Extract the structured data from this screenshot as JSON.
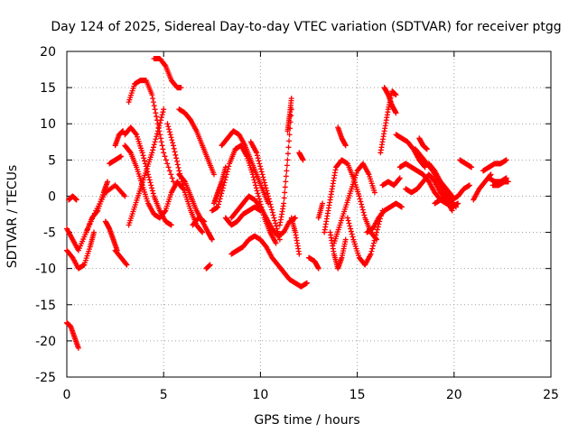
{
  "chart_data": {
    "type": "scatter",
    "title": "Day 124 of 2025, Sidereal Day-to-day VTEC variation (SDTVAR) for receiver ptgg",
    "xlabel": "GPS time / hours",
    "ylabel": "SDTVAR / TECUs",
    "xlim": [
      0,
      25
    ],
    "ylim": [
      -25,
      20
    ],
    "x_ticks": [
      0,
      5,
      10,
      15,
      20,
      25
    ],
    "y_ticks": [
      -25,
      -20,
      -15,
      -10,
      -5,
      0,
      5,
      10,
      15,
      20
    ],
    "x_tick_labels": [
      "0",
      "5",
      "10",
      "15",
      "20",
      "25"
    ],
    "y_tick_labels": [
      "-25",
      "-20",
      "-15",
      "-10",
      "-5",
      "0",
      "5",
      "10",
      "15",
      "20"
    ],
    "grid": true,
    "marker": "+",
    "color": "#ff0000",
    "series": [
      {
        "name": "track-a",
        "x": [
          0.0,
          0.2,
          0.4,
          0.6
        ],
        "y": [
          -17.5,
          -18.0,
          -19.5,
          -21.0
        ]
      },
      {
        "name": "track-b",
        "x": [
          0.0,
          0.3,
          0.6,
          1.0,
          1.5,
          2.0,
          2.5,
          3.0
        ],
        "y": [
          -4.5,
          -6.0,
          -7.5,
          -5.0,
          -2.0,
          0.5,
          1.5,
          0.0
        ]
      },
      {
        "name": "track-c",
        "x": [
          0.0,
          0.3,
          0.6,
          0.9,
          1.2,
          1.4
        ],
        "y": [
          -7.5,
          -8.5,
          -10.0,
          -9.5,
          -7.0,
          -5.0
        ]
      },
      {
        "name": "track-d",
        "x": [
          0.1,
          0.3,
          0.5
        ],
        "y": [
          -0.5,
          0.0,
          -0.5
        ]
      },
      {
        "name": "track-e",
        "x": [
          1.0,
          1.3,
          1.6,
          1.9,
          2.1
        ],
        "y": [
          -5.0,
          -3.0,
          -2.0,
          0.5,
          2.0
        ]
      },
      {
        "name": "track-f",
        "x": [
          2.0,
          2.2,
          2.4,
          2.6
        ],
        "y": [
          -3.5,
          -4.5,
          -6.0,
          -7.5
        ]
      },
      {
        "name": "track-g",
        "x": [
          2.5,
          2.8,
          3.1
        ],
        "y": [
          -7.5,
          -8.5,
          -9.5
        ]
      },
      {
        "name": "track-h",
        "x": [
          2.2,
          2.5,
          2.8
        ],
        "y": [
          4.5,
          5.0,
          5.5
        ]
      },
      {
        "name": "track-i",
        "x": [
          2.5,
          2.7,
          2.9
        ],
        "y": [
          7.0,
          8.5,
          9.0
        ]
      },
      {
        "name": "track-j",
        "x": [
          3.2,
          3.5,
          3.8,
          4.1,
          4.4,
          4.7,
          5.0,
          5.5
        ],
        "y": [
          13.0,
          15.5,
          16.0,
          16.0,
          14.0,
          10.0,
          6.0,
          2.0
        ]
      },
      {
        "name": "track-k",
        "x": [
          3.0,
          3.3,
          3.6,
          3.9,
          4.2,
          4.5,
          4.8,
          5.1,
          5.4
        ],
        "y": [
          8.5,
          9.5,
          8.5,
          6.0,
          3.0,
          0.0,
          -2.0,
          -3.5,
          -4.0
        ]
      },
      {
        "name": "track-l",
        "x": [
          3.0,
          3.3,
          3.6,
          3.9,
          4.2,
          4.5,
          4.8,
          5.1,
          5.4,
          5.7,
          6.0
        ],
        "y": [
          7.0,
          6.0,
          4.0,
          1.5,
          -1.0,
          -2.5,
          -3.0,
          -2.0,
          0.5,
          2.0,
          1.0
        ]
      },
      {
        "name": "track-m",
        "x": [
          3.2,
          3.5,
          3.8,
          4.1,
          4.4,
          4.7,
          5.0
        ],
        "y": [
          -4.0,
          -1.5,
          1.0,
          3.5,
          6.0,
          9.0,
          12.0
        ]
      },
      {
        "name": "track-n",
        "x": [
          4.5,
          4.8,
          5.1,
          5.4,
          5.7,
          5.9
        ],
        "y": [
          19.0,
          19.0,
          18.0,
          16.0,
          15.0,
          15.0
        ]
      },
      {
        "name": "track-o",
        "x": [
          5.2,
          5.5,
          5.8,
          6.1,
          6.4,
          6.7,
          7.0
        ],
        "y": [
          10.0,
          7.0,
          3.5,
          0.5,
          -2.0,
          -4.0,
          -5.0
        ]
      },
      {
        "name": "track-p",
        "x": [
          5.8,
          6.1,
          6.4,
          6.7,
          7.0,
          7.3,
          7.5
        ],
        "y": [
          3.0,
          2.0,
          0.0,
          -2.0,
          -3.5,
          -5.0,
          -6.0
        ]
      },
      {
        "name": "track-q",
        "x": [
          5.8,
          6.1,
          6.4,
          6.7,
          7.0,
          7.3,
          7.6
        ],
        "y": [
          12.0,
          11.5,
          10.5,
          9.0,
          7.0,
          5.0,
          3.0
        ]
      },
      {
        "name": "track-r",
        "x": [
          6.5,
          6.8,
          7.1
        ],
        "y": [
          -4.0,
          -3.0,
          -3.5
        ]
      },
      {
        "name": "track-s",
        "x": [
          7.2,
          7.4
        ],
        "y": [
          -10.0,
          -9.5
        ]
      },
      {
        "name": "track-t",
        "x": [
          7.6,
          7.8,
          8.0,
          8.2
        ],
        "y": [
          -1.0,
          0.5,
          2.0,
          4.0
        ]
      },
      {
        "name": "track-u",
        "x": [
          7.5,
          7.8,
          8.1,
          8.4,
          8.7,
          9.0,
          9.3,
          9.6,
          9.9,
          10.2,
          10.5,
          10.8
        ],
        "y": [
          -2.0,
          -1.5,
          1.5,
          4.5,
          6.5,
          7.0,
          5.5,
          3.0,
          0.0,
          -3.0,
          -5.0,
          -6.5
        ]
      },
      {
        "name": "track-v",
        "x": [
          8.0,
          8.3,
          8.6,
          8.9,
          9.2,
          9.5,
          9.8,
          10.1,
          10.4
        ],
        "y": [
          7.0,
          8.0,
          9.0,
          8.5,
          7.0,
          5.0,
          3.0,
          1.0,
          -1.0
        ]
      },
      {
        "name": "track-w",
        "x": [
          8.2,
          8.5,
          8.8,
          9.1,
          9.4,
          9.7,
          10.0
        ],
        "y": [
          -3.0,
          -4.0,
          -3.5,
          -2.5,
          -2.0,
          -1.5,
          -2.0
        ]
      },
      {
        "name": "track-x",
        "x": [
          8.5,
          8.8,
          9.1,
          9.4,
          9.7,
          10.0,
          10.3,
          10.6,
          10.9,
          11.2,
          11.5,
          11.8
        ],
        "y": [
          -3.0,
          -2.0,
          -1.0,
          0.0,
          -0.5,
          -1.5,
          -3.0,
          -4.5,
          -5.5,
          -5.0,
          -3.5,
          -3.0
        ]
      },
      {
        "name": "track-y",
        "x": [
          8.5,
          8.8,
          9.1,
          9.4,
          9.7,
          10.0,
          10.3,
          10.6,
          10.9,
          11.2,
          11.5,
          11.8,
          12.1,
          12.4
        ],
        "y": [
          -8.0,
          -7.5,
          -7.0,
          -6.0,
          -5.5,
          -6.0,
          -7.0,
          -8.5,
          -9.5,
          -10.5,
          -11.5,
          -12.0,
          -12.5,
          -12.0
        ]
      },
      {
        "name": "track-z",
        "x": [
          9.5,
          9.8,
          10.1,
          10.4,
          10.7,
          11.0
        ],
        "y": [
          7.5,
          6.0,
          3.0,
          0.0,
          -3.0,
          -6.0
        ]
      },
      {
        "name": "track-aa",
        "x": [
          11.0,
          11.2,
          11.4,
          11.6
        ],
        "y": [
          -4.0,
          -1.0,
          5.0,
          12.0
        ]
      },
      {
        "name": "track-ab",
        "x": [
          11.4,
          11.5,
          11.6
        ],
        "y": [
          9.0,
          11.0,
          13.5
        ]
      },
      {
        "name": "track-ac",
        "x": [
          11.6,
          11.8,
          12.0
        ],
        "y": [
          -3.0,
          -5.0,
          -8.0
        ]
      },
      {
        "name": "track-ad",
        "x": [
          12.0,
          12.2
        ],
        "y": [
          6.0,
          5.0
        ]
      },
      {
        "name": "track-ae",
        "x": [
          12.5,
          12.8,
          13.0
        ],
        "y": [
          -8.5,
          -9.0,
          -10.0
        ]
      },
      {
        "name": "track-af",
        "x": [
          13.0,
          13.2
        ],
        "y": [
          -3.0,
          -1.0
        ]
      },
      {
        "name": "track-ag",
        "x": [
          13.3,
          13.5,
          13.7,
          13.9,
          14.2,
          14.5,
          14.8,
          15.1,
          15.4,
          15.7,
          16.0
        ],
        "y": [
          -5.0,
          -2.0,
          1.0,
          4.0,
          5.0,
          4.5,
          2.5,
          0.0,
          -3.0,
          -5.0,
          -6.0
        ]
      },
      {
        "name": "track-ah",
        "x": [
          13.6,
          13.8,
          14.0,
          14.2,
          14.4
        ],
        "y": [
          -5.0,
          -8.0,
          -10.0,
          -8.5,
          -6.0
        ]
      },
      {
        "name": "track-ai",
        "x": [
          13.8,
          14.1,
          14.4,
          14.7,
          15.0,
          15.3,
          15.6,
          15.9
        ],
        "y": [
          -6.5,
          -4.0,
          -1.5,
          1.0,
          3.5,
          4.5,
          3.0,
          0.5
        ]
      },
      {
        "name": "track-aj",
        "x": [
          14.0,
          14.2,
          14.4
        ],
        "y": [
          9.5,
          8.0,
          7.0
        ]
      },
      {
        "name": "track-ak",
        "x": [
          14.5,
          14.8,
          15.1,
          15.4,
          15.7,
          16.0,
          16.3
        ],
        "y": [
          -3.0,
          -6.0,
          -8.5,
          -9.5,
          -8.0,
          -5.0,
          -2.0
        ]
      },
      {
        "name": "track-al",
        "x": [
          15.5,
          15.8,
          16.1,
          16.4,
          16.7,
          17.0,
          17.3
        ],
        "y": [
          -5.0,
          -4.5,
          -3.0,
          -2.0,
          -1.5,
          -1.0,
          -1.5
        ]
      },
      {
        "name": "track-am",
        "x": [
          16.2,
          16.4,
          16.6,
          16.8,
          17.0
        ],
        "y": [
          6.0,
          9.0,
          12.0,
          14.5,
          14.0
        ]
      },
      {
        "name": "track-an",
        "x": [
          16.4,
          16.6,
          16.8,
          17.0
        ],
        "y": [
          15.0,
          14.0,
          12.5,
          11.5
        ]
      },
      {
        "name": "track-ao",
        "x": [
          16.3,
          16.6,
          16.9,
          17.2
        ],
        "y": [
          1.5,
          2.0,
          1.5,
          2.5
        ]
      },
      {
        "name": "track-ap",
        "x": [
          17.0,
          17.3,
          17.6,
          17.9,
          18.2,
          18.5
        ],
        "y": [
          8.5,
          8.0,
          7.5,
          6.5,
          5.0,
          4.0
        ]
      },
      {
        "name": "track-aq",
        "x": [
          17.2,
          17.5,
          17.8,
          18.1,
          18.4,
          18.7,
          19.0,
          19.3,
          19.6,
          19.9,
          20.2
        ],
        "y": [
          4.0,
          4.5,
          4.0,
          3.5,
          3.0,
          2.0,
          0.5,
          -0.5,
          -1.0,
          -1.5,
          -1.0
        ]
      },
      {
        "name": "track-ar",
        "x": [
          17.5,
          17.8,
          18.1,
          18.4,
          18.7,
          19.0,
          19.3,
          19.6,
          19.9
        ],
        "y": [
          1.0,
          0.5,
          1.0,
          2.0,
          3.0,
          2.0,
          0.5,
          -0.5,
          -2.0
        ]
      },
      {
        "name": "track-as",
        "x": [
          18.0,
          18.3,
          18.6,
          18.9,
          19.2,
          19.5,
          19.8,
          20.1
        ],
        "y": [
          6.5,
          5.5,
          4.5,
          3.5,
          2.0,
          0.5,
          -0.5,
          -1.5
        ]
      },
      {
        "name": "track-at",
        "x": [
          18.2,
          18.4,
          18.6
        ],
        "y": [
          8.0,
          7.0,
          6.5
        ]
      },
      {
        "name": "track-au",
        "x": [
          18.7,
          19.0,
          19.3,
          19.6,
          19.9
        ],
        "y": [
          4.5,
          3.5,
          2.0,
          1.0,
          0.0
        ]
      },
      {
        "name": "track-av",
        "x": [
          19.0,
          19.3,
          19.6,
          19.9,
          20.2,
          20.5,
          20.8
        ],
        "y": [
          -1.0,
          -0.5,
          0.0,
          -0.5,
          0.0,
          1.0,
          1.5
        ]
      },
      {
        "name": "track-aw",
        "x": [
          20.3,
          20.6,
          20.9
        ],
        "y": [
          5.0,
          4.5,
          4.0
        ]
      },
      {
        "name": "track-ax",
        "x": [
          21.0,
          21.3,
          21.6,
          21.9
        ],
        "y": [
          -0.5,
          1.0,
          2.0,
          3.0
        ]
      },
      {
        "name": "track-ay",
        "x": [
          21.5,
          21.8,
          22.1,
          22.4,
          22.7
        ],
        "y": [
          3.5,
          4.0,
          4.5,
          4.5,
          5.0
        ]
      },
      {
        "name": "track-az",
        "x": [
          21.8,
          22.1,
          22.4,
          22.7
        ],
        "y": [
          2.5,
          2.0,
          2.0,
          2.5
        ]
      },
      {
        "name": "track-ba",
        "x": [
          22.0,
          22.3,
          22.6,
          22.8
        ],
        "y": [
          1.5,
          1.5,
          2.0,
          2.0
        ]
      }
    ]
  }
}
